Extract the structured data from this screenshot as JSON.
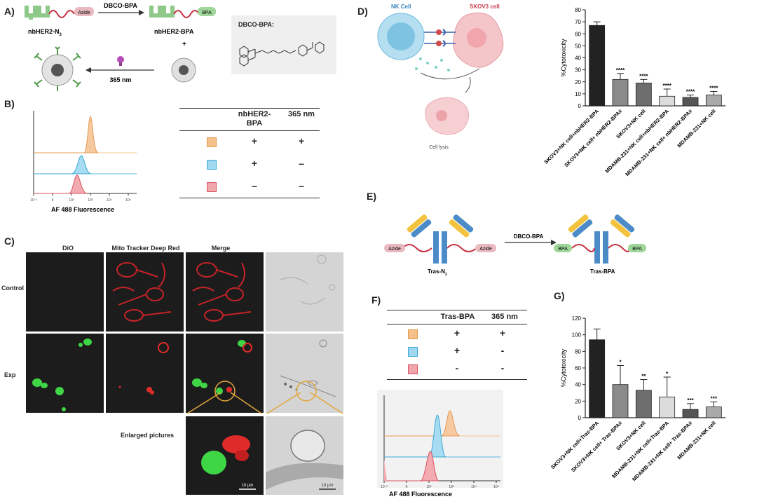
{
  "panelA": {
    "label": "A)",
    "reagent": "DBCO-BPA",
    "azide_tag": "Azide",
    "bpa_tag": "BPA",
    "left_name": "nbHER2-N",
    "left_sub": "3",
    "right_name": "nbHER2-BPA",
    "plus": "+",
    "uv": "365 nm",
    "structure_title": "DBCO-BPA:"
  },
  "panelB": {
    "label": "B)",
    "xlabel": "AF 488 Fluorescence",
    "ticks": [
      "10⁻²",
      "0",
      "10²",
      "10³",
      "10⁴",
      "10⁵"
    ],
    "col1": "nbHER2-\nBPA",
    "col2": "365 nm",
    "rows": [
      {
        "color": "#f6c08a",
        "border": "#e09a4a",
        "c1": "+",
        "c2": "+"
      },
      {
        "color": "#9fd8ef",
        "border": "#3aa9d6",
        "c1": "+",
        "c2": "–"
      },
      {
        "color": "#f1a6ad",
        "border": "#d9535f",
        "c1": "–",
        "c2": "–"
      }
    ]
  },
  "panelC": {
    "label": "C)",
    "cols": [
      "DiO",
      "Mito Tracker Deep Red",
      "Merge"
    ],
    "rows": [
      "Control",
      "Exp"
    ],
    "enlarged": "Enlarged pictures",
    "scale": "10 μm"
  },
  "panelD": {
    "label": "D)",
    "nk": "NK Cell",
    "skov": "SKOV3 cell",
    "lysis": "Cell lysis"
  },
  "panelE": {
    "label": "E)",
    "azide": "Azide",
    "bpa": "BPA",
    "reagent": "DBCO-BPA",
    "left_name": "Tras-N",
    "left_sub": "3",
    "right_name": "Tras-BPA"
  },
  "panelF": {
    "label": "F)",
    "col1": "Tras-BPA",
    "col2": "365 nm",
    "xlabel": "AF 488 Fluorescence",
    "rows": [
      {
        "color": "#f6c08a",
        "border": "#e09a4a",
        "c1": "+",
        "c2": "+"
      },
      {
        "color": "#9fd8ef",
        "border": "#3aa9d6",
        "c1": "+",
        "c2": "-"
      },
      {
        "color": "#f1a6ad",
        "border": "#d9535f",
        "c1": "-",
        "c2": "-"
      }
    ]
  },
  "chart_data": [
    {
      "id": "D",
      "type": "bar",
      "ylabel": "%Cytotoxicity",
      "ylim": [
        0,
        80
      ],
      "yticks": [
        0,
        10,
        20,
        30,
        40,
        50,
        60,
        70,
        80
      ],
      "categories": [
        "SKOV3+NK cell+nbHER2-BPA",
        "SKOV3+NK cell+ nbHER2-BPA#",
        "SKOV3+NK cell",
        "MDAMB-231+NK cell+nbHER2-BPA",
        "MDAMB-231+NK cell+ nbHER2-BPA#",
        "MDAMB-231+NK cell"
      ],
      "values": [
        67,
        22,
        19,
        8,
        7,
        9
      ],
      "errors": [
        3,
        5,
        3,
        6,
        2,
        3
      ],
      "annotations": [
        "",
        "****",
        "****",
        "****",
        "****",
        "****"
      ],
      "colors": [
        "#222222",
        "#8a8a8a",
        "#6e6e6e",
        "#dcdcdc",
        "#555555",
        "#a9a9a9"
      ]
    },
    {
      "id": "G",
      "type": "bar",
      "label": "G)",
      "ylabel": "%Cytotoxicity",
      "ylim": [
        0,
        120
      ],
      "yticks": [
        0,
        20,
        40,
        60,
        80,
        100,
        120
      ],
      "categories": [
        "SKOV3+NK cell+Tras-BPA",
        "SKOV3+NK cell+ Tras-BPA#",
        "SKOV3+NK cell",
        "MDAMB-231+NK cell+Tras-BPA",
        "MDAMB-231+NK cell+ Tras-BPA#",
        "MDAMB-231+NK cell"
      ],
      "values": [
        94,
        40,
        33,
        25,
        10,
        13
      ],
      "errors": [
        13,
        23,
        13,
        24,
        7,
        6
      ],
      "annotations": [
        "",
        "*",
        "**",
        "*",
        "***",
        "***"
      ],
      "colors": [
        "#222222",
        "#8a8a8a",
        "#6e6e6e",
        "#dcdcdc",
        "#555555",
        "#a9a9a9"
      ]
    }
  ]
}
